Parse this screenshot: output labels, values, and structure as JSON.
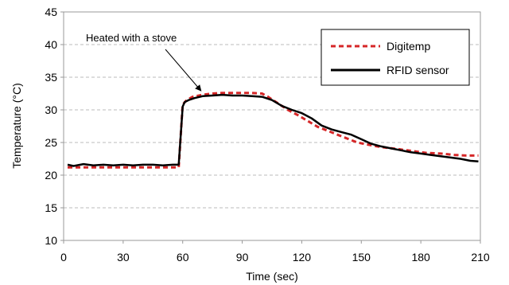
{
  "chart_data": {
    "type": "line",
    "xlabel": "Time (sec)",
    "ylabel": "Temperature (°C)",
    "xlim": [
      0,
      210
    ],
    "ylim": [
      10,
      45
    ],
    "xticks": [
      0,
      30,
      60,
      90,
      120,
      150,
      180,
      210
    ],
    "yticks": [
      10,
      15,
      20,
      25,
      30,
      35,
      40,
      45
    ],
    "grid": "horizontal-dashed",
    "legend_position": "top-right",
    "annotation": {
      "text": "Heated with a stove",
      "points_to": [
        70,
        32.2
      ]
    },
    "series": [
      {
        "name": "Digitemp",
        "color": "#d62728",
        "style": "dashed",
        "x": [
          2,
          10,
          20,
          30,
          40,
          50,
          58,
          60,
          62,
          65,
          70,
          75,
          80,
          85,
          90,
          95,
          100,
          103,
          108,
          113,
          118,
          123,
          128,
          133,
          138,
          143,
          148,
          153,
          158,
          163,
          168,
          173,
          178,
          183,
          190,
          197,
          203,
          209
        ],
        "y": [
          21.2,
          21.2,
          21.2,
          21.2,
          21.2,
          21.2,
          21.2,
          30.8,
          31.5,
          32,
          32.3,
          32.5,
          32.6,
          32.6,
          32.6,
          32.6,
          32.5,
          32,
          31,
          30,
          29.2,
          28.3,
          27.4,
          26.8,
          26.2,
          25.6,
          25,
          24.7,
          24.4,
          24.2,
          24,
          23.8,
          23.6,
          23.4,
          23.3,
          23.1,
          23,
          23
        ]
      },
      {
        "name": "RFID sensor",
        "color": "#000000",
        "style": "solid",
        "x": [
          2,
          5,
          10,
          15,
          20,
          25,
          30,
          35,
          40,
          45,
          50,
          55,
          58,
          60,
          61,
          63,
          66,
          70,
          75,
          80,
          85,
          90,
          95,
          100,
          105,
          110,
          115,
          120,
          125,
          130,
          135,
          140,
          145,
          150,
          155,
          160,
          165,
          170,
          175,
          180,
          185,
          190,
          195,
          200,
          205,
          209
        ],
        "y": [
          21.6,
          21.4,
          21.7,
          21.5,
          21.6,
          21.5,
          21.6,
          21.5,
          21.6,
          21.6,
          21.5,
          21.6,
          21.6,
          30.5,
          31.2,
          31.5,
          31.8,
          32.1,
          32.2,
          32.3,
          32.2,
          32.2,
          32.1,
          32,
          31.5,
          30.6,
          30,
          29.5,
          28.7,
          27.6,
          27,
          26.6,
          26.2,
          25.5,
          24.8,
          24.4,
          24.1,
          23.8,
          23.5,
          23.3,
          23.1,
          22.9,
          22.7,
          22.5,
          22.2,
          22.1
        ]
      }
    ]
  }
}
